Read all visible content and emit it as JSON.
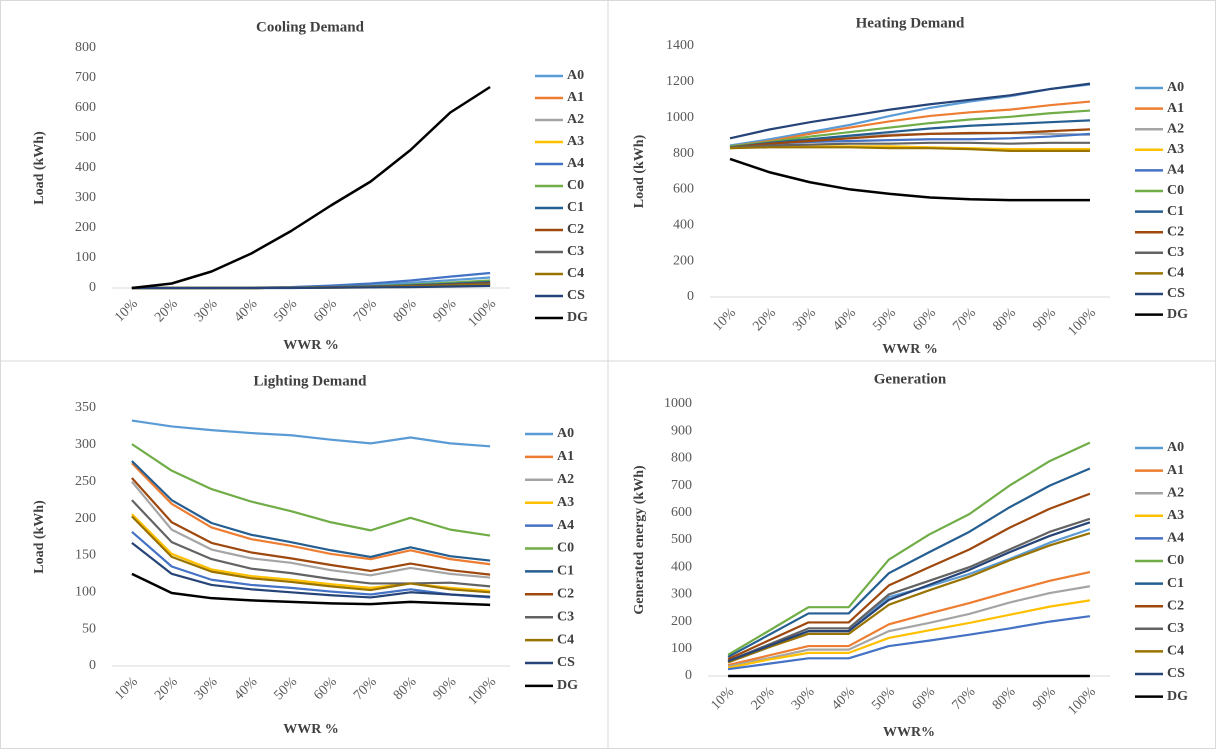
{
  "chart_data": [
    {
      "type": "line",
      "title": "Cooling Demand",
      "x_label": "WWR %",
      "y_label": "Load (kWh)",
      "categories": [
        "10%",
        "20%",
        "30%",
        "40%",
        "50%",
        "60%",
        "70%",
        "80%",
        "90%",
        "100%"
      ],
      "ylim": [
        0,
        800
      ],
      "yticks": [
        0,
        100,
        200,
        300,
        400,
        500,
        600,
        700,
        800
      ],
      "series": [
        {
          "name": "A0",
          "color": "#5b9bd5",
          "values": [
            0,
            0,
            0,
            1,
            2,
            5,
            10,
            17,
            26,
            35
          ]
        },
        {
          "name": "A1",
          "color": "#ed7d31",
          "values": [
            0,
            0,
            0,
            0,
            1,
            2,
            4,
            7,
            10,
            14
          ]
        },
        {
          "name": "A2",
          "color": "#a5a5a5",
          "values": [
            0,
            0,
            0,
            0,
            1,
            2,
            3,
            5,
            8,
            11
          ]
        },
        {
          "name": "A3",
          "color": "#ffc000",
          "values": [
            0,
            0,
            0,
            0,
            1,
            1,
            2,
            4,
            6,
            9
          ]
        },
        {
          "name": "A4",
          "color": "#4472c4",
          "values": [
            0,
            0,
            0,
            1,
            3,
            8,
            15,
            25,
            38,
            50
          ]
        },
        {
          "name": "C0",
          "color": "#70ad47",
          "values": [
            0,
            0,
            0,
            0,
            1,
            3,
            6,
            11,
            18,
            25
          ]
        },
        {
          "name": "C1",
          "color": "#255e91",
          "values": [
            0,
            0,
            0,
            0,
            1,
            2,
            5,
            9,
            14,
            20
          ]
        },
        {
          "name": "C2",
          "color": "#9e480e",
          "values": [
            0,
            0,
            0,
            0,
            1,
            2,
            4,
            7,
            11,
            16
          ]
        },
        {
          "name": "C3",
          "color": "#636363",
          "values": [
            0,
            0,
            0,
            0,
            1,
            2,
            3,
            6,
            9,
            13
          ]
        },
        {
          "name": "C4",
          "color": "#997300",
          "values": [
            0,
            0,
            0,
            0,
            1,
            1,
            3,
            5,
            8,
            11
          ]
        },
        {
          "name": "CS",
          "color": "#264478",
          "values": [
            0,
            0,
            0,
            0,
            0,
            1,
            2,
            3,
            5,
            7
          ]
        },
        {
          "name": "DG",
          "color": "#000000",
          "values": [
            0,
            15,
            55,
            115,
            190,
            275,
            355,
            460,
            585,
            670
          ]
        }
      ]
    },
    {
      "type": "line",
      "title": "Heating Demand",
      "x_label": "WWR %",
      "y_label": "Load (kWh)",
      "categories": [
        "10%",
        "20%",
        "30%",
        "40%",
        "50%",
        "60%",
        "70%",
        "80%",
        "90%",
        "100%"
      ],
      "ylim": [
        0,
        1400
      ],
      "yticks": [
        0,
        200,
        400,
        600,
        800,
        1000,
        1200,
        1400
      ],
      "series": [
        {
          "name": "A0",
          "color": "#5b9bd5",
          "values": [
            845,
            880,
            920,
            960,
            1010,
            1055,
            1090,
            1120,
            1160,
            1185
          ]
        },
        {
          "name": "A1",
          "color": "#ed7d31",
          "values": [
            840,
            870,
            910,
            945,
            980,
            1010,
            1030,
            1045,
            1070,
            1090
          ]
        },
        {
          "name": "A2",
          "color": "#a5a5a5",
          "values": [
            840,
            860,
            880,
            895,
            905,
            910,
            910,
            915,
            910,
            905
          ]
        },
        {
          "name": "A3",
          "color": "#ffc000",
          "values": [
            830,
            840,
            840,
            840,
            840,
            835,
            830,
            825,
            825,
            825
          ]
        },
        {
          "name": "A4",
          "color": "#4472c4",
          "values": [
            840,
            855,
            865,
            870,
            875,
            880,
            880,
            885,
            895,
            910
          ]
        },
        {
          "name": "C0",
          "color": "#70ad47",
          "values": [
            840,
            865,
            895,
            920,
            945,
            970,
            990,
            1005,
            1025,
            1040
          ]
        },
        {
          "name": "C1",
          "color": "#255e91",
          "values": [
            835,
            860,
            880,
            900,
            920,
            940,
            955,
            965,
            975,
            985
          ]
        },
        {
          "name": "C2",
          "color": "#9e480e",
          "values": [
            835,
            855,
            870,
            885,
            900,
            910,
            915,
            915,
            925,
            935
          ]
        },
        {
          "name": "C3",
          "color": "#636363",
          "values": [
            835,
            845,
            850,
            855,
            855,
            860,
            860,
            855,
            860,
            860
          ]
        },
        {
          "name": "C4",
          "color": "#997300",
          "values": [
            830,
            835,
            835,
            835,
            830,
            830,
            825,
            815,
            815,
            815
          ]
        },
        {
          "name": "CS",
          "color": "#264478",
          "values": [
            885,
            935,
            975,
            1010,
            1045,
            1075,
            1100,
            1125,
            1160,
            1190
          ]
        },
        {
          "name": "DG",
          "color": "#000000",
          "values": [
            770,
            695,
            640,
            600,
            575,
            555,
            545,
            540,
            540,
            540
          ]
        }
      ]
    },
    {
      "type": "line",
      "title": "Lighting Demand",
      "x_label": "WWR %",
      "y_label": "Load (kWh)",
      "categories": [
        "10%",
        "20%",
        "30%",
        "40%",
        "50%",
        "60%",
        "70%",
        "80%",
        "90%",
        "100%"
      ],
      "ylim": [
        0,
        350
      ],
      "yticks": [
        0,
        50,
        100,
        150,
        200,
        250,
        300,
        350
      ],
      "series": [
        {
          "name": "A0",
          "color": "#5b9bd5",
          "values": [
            333,
            325,
            320,
            316,
            313,
            307,
            302,
            310,
            302,
            298
          ]
        },
        {
          "name": "A1",
          "color": "#ed7d31",
          "values": [
            275,
            220,
            188,
            172,
            163,
            152,
            145,
            157,
            145,
            138
          ]
        },
        {
          "name": "A2",
          "color": "#a5a5a5",
          "values": [
            250,
            185,
            158,
            146,
            140,
            130,
            123,
            133,
            125,
            120
          ]
        },
        {
          "name": "A3",
          "color": "#ffc000",
          "values": [
            206,
            152,
            131,
            122,
            117,
            111,
            106,
            112,
            106,
            102
          ]
        },
        {
          "name": "A4",
          "color": "#4472c4",
          "values": [
            182,
            135,
            117,
            110,
            106,
            101,
            97,
            104,
            97,
            93
          ]
        },
        {
          "name": "C0",
          "color": "#70ad47",
          "values": [
            301,
            265,
            240,
            223,
            210,
            195,
            184,
            201,
            185,
            177
          ]
        },
        {
          "name": "C1",
          "color": "#255e91",
          "values": [
            278,
            225,
            194,
            178,
            168,
            157,
            148,
            161,
            149,
            143
          ]
        },
        {
          "name": "C2",
          "color": "#9e480e",
          "values": [
            255,
            195,
            167,
            154,
            146,
            137,
            129,
            139,
            130,
            124
          ]
        },
        {
          "name": "C3",
          "color": "#636363",
          "values": [
            225,
            168,
            145,
            132,
            126,
            118,
            112,
            112,
            113,
            108
          ]
        },
        {
          "name": "C4",
          "color": "#997300",
          "values": [
            203,
            148,
            128,
            119,
            114,
            108,
            103,
            112,
            104,
            100
          ]
        },
        {
          "name": "CS",
          "color": "#264478",
          "values": [
            167,
            125,
            110,
            104,
            100,
            96,
            93,
            100,
            97,
            94
          ]
        },
        {
          "name": "DG",
          "color": "#000000",
          "values": [
            125,
            99,
            92,
            89,
            87,
            85,
            84,
            87,
            85,
            83
          ]
        }
      ]
    },
    {
      "type": "line",
      "title": "Generation",
      "x_label": "WWR%",
      "y_label": "Generated energy (kWh)",
      "categories": [
        "10%",
        "20%",
        "30%",
        "40%",
        "50%",
        "60%",
        "70%",
        "80%",
        "90%",
        "100%"
      ],
      "ylim": [
        0,
        1000
      ],
      "yticks": [
        0,
        100,
        200,
        300,
        400,
        500,
        600,
        700,
        800,
        900,
        1000
      ],
      "series": [
        {
          "name": "A0",
          "color": "#5b9bd5",
          "values": [
            50,
            105,
            165,
            165,
            290,
            330,
            375,
            430,
            490,
            540
          ]
        },
        {
          "name": "A1",
          "color": "#ed7d31",
          "values": [
            40,
            75,
            110,
            110,
            190,
            230,
            268,
            310,
            350,
            382
          ]
        },
        {
          "name": "A2",
          "color": "#a5a5a5",
          "values": [
            35,
            65,
            97,
            97,
            165,
            195,
            228,
            270,
            305,
            330
          ]
        },
        {
          "name": "A3",
          "color": "#ffc000",
          "values": [
            30,
            60,
            85,
            85,
            140,
            168,
            195,
            225,
            255,
            278
          ]
        },
        {
          "name": "A4",
          "color": "#4472c4",
          "values": [
            25,
            45,
            65,
            65,
            110,
            130,
            152,
            175,
            200,
            220
          ]
        },
        {
          "name": "C0",
          "color": "#70ad47",
          "values": [
            78,
            165,
            253,
            253,
            428,
            520,
            595,
            700,
            790,
            858
          ]
        },
        {
          "name": "C1",
          "color": "#255e91",
          "values": [
            70,
            150,
            230,
            230,
            378,
            455,
            530,
            620,
            700,
            763
          ]
        },
        {
          "name": "C2",
          "color": "#9e480e",
          "values": [
            62,
            130,
            197,
            197,
            333,
            400,
            465,
            545,
            615,
            670
          ]
        },
        {
          "name": "C3",
          "color": "#636363",
          "values": [
            55,
            115,
            175,
            175,
            300,
            350,
            400,
            465,
            530,
            578
          ]
        },
        {
          "name": "C4",
          "color": "#997300",
          "values": [
            50,
            105,
            155,
            155,
            262,
            315,
            365,
            425,
            480,
            525
          ]
        },
        {
          "name": "CS",
          "color": "#264478",
          "values": [
            55,
            110,
            165,
            165,
            280,
            335,
            390,
            455,
            515,
            565
          ]
        },
        {
          "name": "DG",
          "color": "#000000",
          "values": [
            0,
            0,
            0,
            0,
            0,
            0,
            0,
            0,
            0,
            0
          ]
        }
      ]
    }
  ]
}
